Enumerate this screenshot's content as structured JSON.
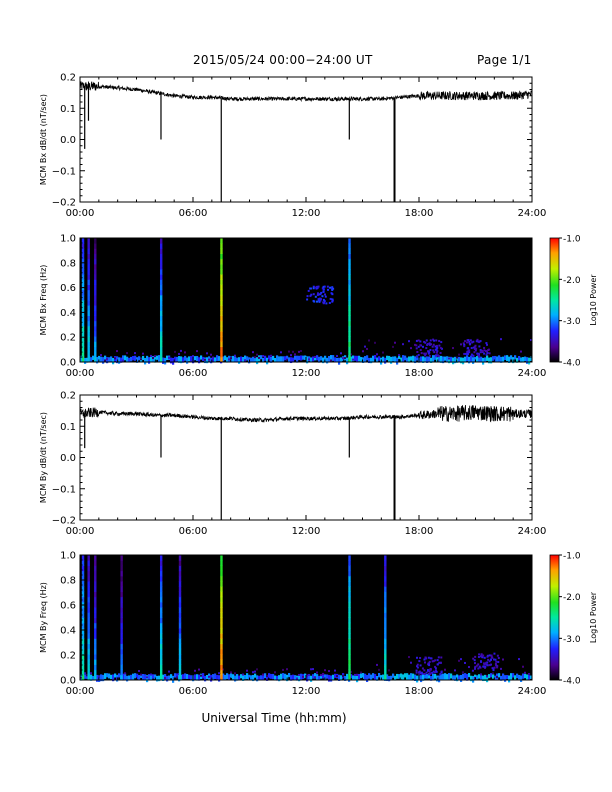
{
  "header": {
    "title": "2015/05/24  00:00−24:00 UT",
    "page": "Page 1/1"
  },
  "xaxis": {
    "label": "Universal Time (hh:mm)",
    "ticks": [
      "00:00",
      "06:00",
      "12:00",
      "18:00",
      "24:00"
    ],
    "tick_hours": [
      0,
      6,
      12,
      18,
      24
    ]
  },
  "colorbar": {
    "label": "Log10 Power",
    "ticks": [
      "-1.0",
      "-2.0",
      "-3.0",
      "-4.0"
    ]
  },
  "chart_data": [
    {
      "type": "line",
      "ylabel": "MCM Bx dB/dt (nT/sec)",
      "xlim": [
        0,
        24
      ],
      "ylim": [
        -0.2,
        0.2
      ],
      "yticks": [
        "0.2",
        "0.1",
        "0.0",
        "−0.1",
        "−0.2"
      ],
      "ytick_values": [
        0.2,
        0.1,
        0.0,
        -0.1,
        -0.2
      ],
      "series": [
        {
          "x": [
            0,
            0.3,
            1,
            2,
            3,
            4,
            5,
            6,
            7,
            8,
            9,
            10,
            11,
            12,
            13,
            14,
            15,
            16,
            17,
            18,
            19,
            20,
            21,
            22,
            23,
            24
          ],
          "y": [
            0.17,
            0.17,
            0.17,
            0.165,
            0.16,
            0.15,
            0.14,
            0.135,
            0.135,
            0.13,
            0.13,
            0.13,
            0.13,
            0.13,
            0.13,
            0.13,
            0.13,
            0.13,
            0.135,
            0.14,
            0.14,
            0.14,
            0.14,
            0.14,
            0.14,
            0.145
          ]
        }
      ],
      "spikes": [
        {
          "x": 0.25,
          "y": -0.03
        },
        {
          "x": 0.45,
          "y": 0.06
        },
        {
          "x": 4.3,
          "y": 0.0
        },
        {
          "x": 7.5,
          "y": -0.2
        },
        {
          "x": 14.3,
          "y": 0.0
        },
        {
          "x": 16.7,
          "y": -0.2
        }
      ]
    },
    {
      "type": "heatmap",
      "ylabel": "MCM Bx Freq (Hz)",
      "xlim": [
        0,
        24
      ],
      "ylim": [
        0.0,
        1.0
      ],
      "yticks": [
        "1.0",
        "0.8",
        "0.6",
        "0.4",
        "0.2",
        "0.0"
      ],
      "ytick_values": [
        1.0,
        0.8,
        0.6,
        0.4,
        0.2,
        0.0
      ],
      "zlim": [
        -4.0,
        -1.0
      ],
      "vertical_features": [
        {
          "x": 0.15,
          "log_power": -3.2
        },
        {
          "x": 0.45,
          "log_power": -3.4
        },
        {
          "x": 0.8,
          "log_power": -3.6
        },
        {
          "x": 4.3,
          "log_power": -3.3
        },
        {
          "x": 7.5,
          "log_power": -2.0
        },
        {
          "x": 14.3,
          "log_power": -3.0
        }
      ],
      "blobs": [
        {
          "x": 12.7,
          "f": 0.55,
          "log_power": -3.4
        },
        {
          "x": 18.5,
          "f": 0.12,
          "log_power": -3.6
        },
        {
          "x": 21.0,
          "f": 0.12,
          "log_power": -3.6
        }
      ]
    },
    {
      "type": "line",
      "ylabel": "MCM By dB/dt (nT/sec)",
      "xlim": [
        0,
        24
      ],
      "ylim": [
        -0.2,
        0.2
      ],
      "yticks": [
        "0.2",
        "0.1",
        "0.0",
        "−0.1",
        "−0.2"
      ],
      "ytick_values": [
        0.2,
        0.1,
        0.0,
        -0.1,
        -0.2
      ],
      "series": [
        {
          "x": [
            0,
            1,
            2,
            3,
            4,
            5,
            6,
            7,
            8,
            9,
            10,
            11,
            12,
            13,
            14,
            15,
            16,
            17,
            18,
            19,
            20,
            21,
            22,
            23,
            24
          ],
          "y": [
            0.14,
            0.145,
            0.14,
            0.14,
            0.135,
            0.135,
            0.13,
            0.125,
            0.125,
            0.12,
            0.12,
            0.125,
            0.125,
            0.125,
            0.125,
            0.13,
            0.13,
            0.13,
            0.135,
            0.14,
            0.14,
            0.145,
            0.14,
            0.14,
            0.14
          ]
        }
      ],
      "spikes": [
        {
          "x": 0.25,
          "y": 0.03
        },
        {
          "x": 4.3,
          "y": 0.0
        },
        {
          "x": 7.5,
          "y": -0.2
        },
        {
          "x": 14.3,
          "y": 0.0
        },
        {
          "x": 16.7,
          "y": -0.2
        }
      ]
    },
    {
      "type": "heatmap",
      "ylabel": "MCM By Freq (Hz)",
      "xlim": [
        0,
        24
      ],
      "ylim": [
        0.0,
        1.0
      ],
      "yticks": [
        "1.0",
        "0.8",
        "0.6",
        "0.4",
        "0.2",
        "0.0"
      ],
      "ytick_values": [
        1.0,
        0.8,
        0.6,
        0.4,
        0.2,
        0.0
      ],
      "zlim": [
        -4.0,
        -1.0
      ],
      "vertical_features": [
        {
          "x": 0.15,
          "log_power": -3.2
        },
        {
          "x": 0.45,
          "log_power": -3.4
        },
        {
          "x": 0.8,
          "log_power": -3.6
        },
        {
          "x": 2.2,
          "log_power": -3.7
        },
        {
          "x": 4.3,
          "log_power": -3.3
        },
        {
          "x": 5.3,
          "log_power": -3.5
        },
        {
          "x": 7.5,
          "log_power": -2.0
        },
        {
          "x": 14.3,
          "log_power": -3.0
        },
        {
          "x": 16.2,
          "log_power": -3.3
        }
      ],
      "blobs": [
        {
          "x": 18.5,
          "f": 0.12,
          "log_power": -3.6
        },
        {
          "x": 21.5,
          "f": 0.15,
          "log_power": -3.6
        }
      ]
    }
  ]
}
